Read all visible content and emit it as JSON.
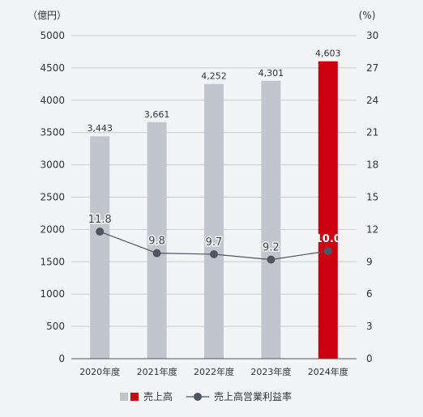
{
  "chart_data": {
    "type": "bar+line",
    "categories": [
      "2020年度",
      "2021年度",
      "2022年度",
      "2023年度",
      "2024年度"
    ],
    "y_left": {
      "unit_label": "（億円）",
      "min": 0,
      "max": 5000,
      "ticks": [
        0,
        500,
        1000,
        1500,
        2000,
        2500,
        3000,
        3500,
        4000,
        4500,
        5000
      ]
    },
    "y_right": {
      "unit_label": "(%)",
      "min": 0,
      "max": 30,
      "ticks": [
        0,
        3,
        6,
        9,
        12,
        15,
        18,
        21,
        24,
        27,
        30
      ]
    },
    "grid": true,
    "legend_position": "bottom",
    "series": [
      {
        "name": "売上高",
        "kind": "bar",
        "axis": "left",
        "values": [
          3443,
          3661,
          4252,
          4301,
          4603
        ],
        "labels": [
          "3,443",
          "3,661",
          "4,252",
          "4,301",
          "4,603"
        ],
        "color": "#c1c6ce",
        "highlight_color": "#cc0011",
        "highlight_index": 4
      },
      {
        "name": "売上高営業利益率",
        "kind": "line",
        "axis": "right",
        "values": [
          11.8,
          9.8,
          9.7,
          9.2,
          10.0
        ],
        "labels": [
          "11.8",
          "9.8",
          "9.7",
          "9.2",
          "10.0"
        ],
        "color": "#4d5560"
      }
    ]
  }
}
